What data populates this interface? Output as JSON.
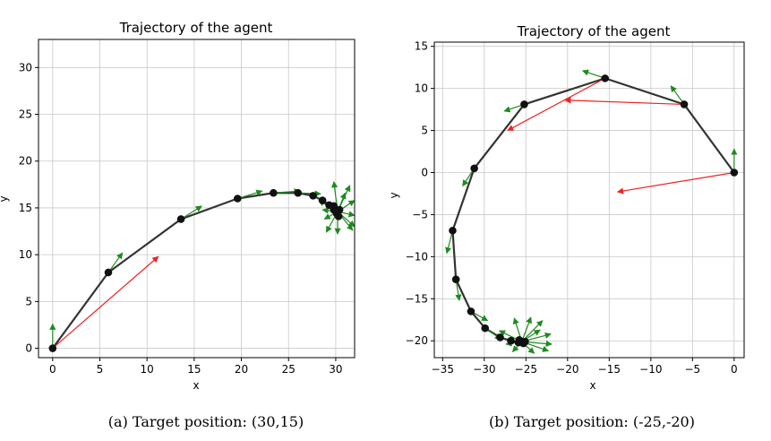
{
  "chart_data": [
    {
      "type": "scatter",
      "title": "Trajectory of the agent",
      "xlabel": "x",
      "ylabel": "y",
      "xlim": [
        -1.5,
        32
      ],
      "ylim": [
        -1,
        33
      ],
      "xticks": [
        0,
        5,
        10,
        15,
        20,
        25,
        30
      ],
      "yticks": [
        0,
        5,
        10,
        15,
        20,
        25,
        30
      ],
      "grid": true,
      "caption": "(a) Target position: (30,15)",
      "trajectory": [
        [
          0,
          0
        ],
        [
          5.9,
          8.1
        ],
        [
          13.6,
          13.8
        ],
        [
          19.6,
          16.0
        ],
        [
          23.4,
          16.6
        ],
        [
          26.0,
          16.6
        ],
        [
          27.6,
          16.3
        ],
        [
          28.6,
          15.8
        ],
        [
          29.3,
          15.3
        ],
        [
          29.8,
          14.8
        ],
        [
          30.1,
          14.4
        ],
        [
          30.3,
          14.1
        ],
        [
          30.2,
          14.6
        ],
        [
          29.8,
          15.2
        ],
        [
          30.4,
          14.8
        ]
      ],
      "red_arrows": [
        [
          0,
          0,
          11.2,
          9.8
        ]
      ],
      "green_arrows": [
        [
          0,
          0,
          0,
          2.6
        ],
        [
          5.9,
          8.1,
          7.4,
          10.2
        ],
        [
          13.6,
          13.8,
          15.8,
          15.2
        ],
        [
          19.6,
          16.0,
          22.2,
          16.8
        ],
        [
          23.4,
          16.6,
          26.2,
          16.8
        ],
        [
          26.0,
          16.6,
          28.4,
          16.5
        ],
        [
          30.2,
          14.6,
          28.8,
          13.8
        ],
        [
          30.2,
          14.6,
          28.2,
          15.8
        ],
        [
          30.2,
          14.6,
          29.8,
          17.8
        ],
        [
          30.2,
          14.6,
          31.5,
          17.4
        ],
        [
          30.2,
          14.6,
          32.0,
          15.8
        ],
        [
          30.2,
          14.6,
          32.0,
          14.2
        ],
        [
          30.2,
          14.6,
          31.8,
          12.6
        ],
        [
          30.2,
          14.6,
          30.2,
          12.2
        ],
        [
          30.2,
          14.6,
          29.0,
          12.4
        ],
        [
          30.2,
          14.6,
          28.6,
          14.8
        ],
        [
          30.2,
          14.6,
          31.0,
          16.6
        ],
        [
          30.2,
          14.6,
          32.0,
          13.0
        ]
      ]
    },
    {
      "type": "scatter",
      "title": "Trajectory of the agent",
      "xlabel": "x",
      "ylabel": "y",
      "xlim": [
        -36,
        1.2
      ],
      "ylim": [
        -22,
        15.5
      ],
      "xticks": [
        -35,
        -30,
        -25,
        -20,
        -15,
        -10,
        -5,
        0
      ],
      "yticks": [
        -20,
        -15,
        -10,
        -5,
        0,
        5,
        10,
        15
      ],
      "grid": true,
      "caption": "(b) Target position: (-25,-20)",
      "trajectory": [
        [
          0,
          0
        ],
        [
          -6,
          8.1
        ],
        [
          -15.5,
          11.2
        ],
        [
          -25.2,
          8.1
        ],
        [
          -31.2,
          0.5
        ],
        [
          -33.8,
          -6.9
        ],
        [
          -33.4,
          -12.7
        ],
        [
          -31.6,
          -16.5
        ],
        [
          -29.9,
          -18.5
        ],
        [
          -28.1,
          -19.6
        ],
        [
          -26.8,
          -20.0
        ],
        [
          -25.9,
          -20.2
        ],
        [
          -25.5,
          -20.1
        ],
        [
          -25.3,
          -20.3
        ],
        [
          -25.8,
          -19.9
        ],
        [
          -25.1,
          -20.1
        ]
      ],
      "red_arrows": [
        [
          0,
          0,
          -14,
          -2.3
        ],
        [
          -6,
          8.1,
          -20.3,
          8.6
        ],
        [
          -15.5,
          11.2,
          -27.2,
          5.0
        ]
      ],
      "green_arrows": [
        [
          0,
          0,
          0,
          2.8
        ],
        [
          -6,
          8.1,
          -7.6,
          10.3
        ],
        [
          -15.5,
          11.2,
          -18.2,
          12.1
        ],
        [
          -25.2,
          8.1,
          -27.6,
          7.3
        ],
        [
          -31.2,
          0.5,
          -32.6,
          -1.6
        ],
        [
          -33.8,
          -6.9,
          -34.5,
          -9.6
        ],
        [
          -33.4,
          -12.7,
          -33.0,
          -15.2
        ],
        [
          -31.6,
          -16.5,
          -29.6,
          -17.6
        ],
        [
          -29.9,
          -18.5,
          -28.0,
          -19.8
        ],
        [
          -25.5,
          -20.1,
          -26.4,
          -17.3
        ],
        [
          -25.5,
          -20.1,
          -28.2,
          -18.8
        ],
        [
          -25.5,
          -20.1,
          -24.4,
          -17.2
        ],
        [
          -25.5,
          -20.1,
          -23.0,
          -17.6
        ],
        [
          -25.5,
          -20.1,
          -22.0,
          -19.2
        ],
        [
          -25.5,
          -20.1,
          -21.9,
          -20.4
        ],
        [
          -25.5,
          -20.1,
          -22.3,
          -21.2
        ],
        [
          -25.5,
          -20.1,
          -24.0,
          -21.5
        ],
        [
          -25.5,
          -20.1,
          -26.6,
          -21.3
        ],
        [
          -25.5,
          -20.1,
          -27.4,
          -20.4
        ],
        [
          -25.5,
          -20.1,
          -23.3,
          -18.7
        ]
      ]
    }
  ]
}
